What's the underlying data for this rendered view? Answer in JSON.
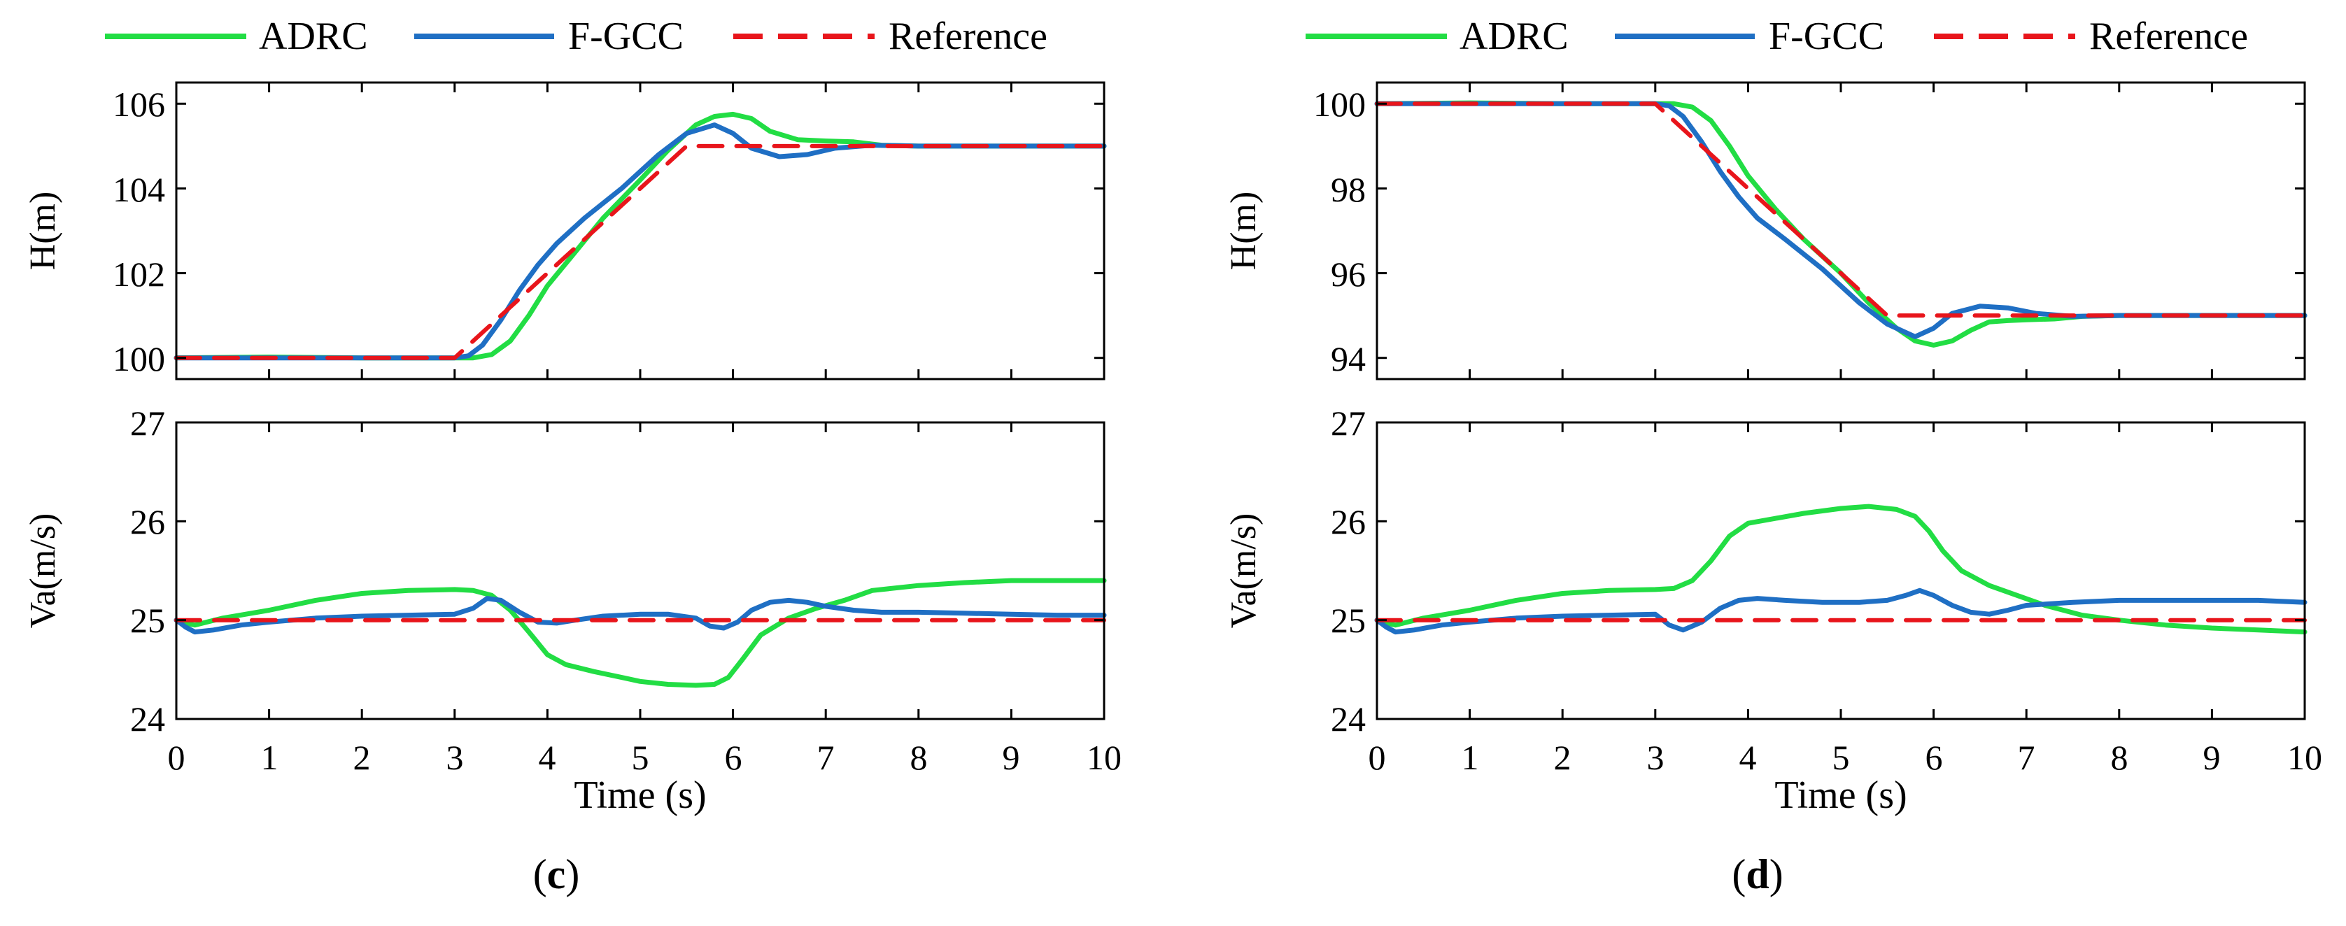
{
  "chart_data": [
    {
      "type": "line",
      "panel": "c",
      "caption": {
        "open": "(",
        "letter": "c",
        "close": ")"
      },
      "xlabel": "Time (s)",
      "xlim": [
        0,
        10
      ],
      "xticks": [
        0,
        1,
        2,
        3,
        4,
        5,
        6,
        7,
        8,
        9,
        10
      ],
      "legend": {
        "position": "top",
        "entries": [
          "ADRC",
          "F-GCC",
          "Reference"
        ]
      },
      "colors": {
        "ADRC": "#22dd44",
        "F-GCC": "#1f6fc4",
        "Reference": "#e8151b"
      },
      "subplots": [
        {
          "ylabel": "H(m)",
          "ylim": [
            99.5,
            106.5
          ],
          "yticks": [
            100,
            102,
            104,
            106
          ],
          "series": [
            {
              "name": "ADRC",
              "style": "solid",
              "x": [
                0,
                1,
                2,
                3,
                3.2,
                3.4,
                3.6,
                3.8,
                4,
                4.3,
                4.6,
                5,
                5.3,
                5.6,
                5.8,
                6,
                6.2,
                6.4,
                6.7,
                7,
                7.3,
                7.6,
                8,
                9,
                10
              ],
              "y": [
                100,
                100.02,
                100,
                100,
                100,
                100.08,
                100.4,
                101,
                101.7,
                102.5,
                103.3,
                104.2,
                104.9,
                105.5,
                105.7,
                105.75,
                105.65,
                105.35,
                105.15,
                105.12,
                105.1,
                105.02,
                105,
                105,
                105
              ]
            },
            {
              "name": "F-GCC",
              "style": "solid",
              "x": [
                0,
                1,
                2,
                3,
                3.15,
                3.3,
                3.5,
                3.7,
                3.9,
                4.1,
                4.4,
                4.8,
                5.2,
                5.5,
                5.8,
                6,
                6.2,
                6.5,
                6.8,
                7.1,
                7.5,
                8,
                9,
                10
              ],
              "y": [
                100,
                100,
                100,
                100,
                100.05,
                100.3,
                100.9,
                101.6,
                102.2,
                102.7,
                103.3,
                104,
                104.8,
                105.3,
                105.5,
                105.3,
                104.95,
                104.75,
                104.8,
                104.95,
                105.02,
                105,
                105,
                105
              ]
            },
            {
              "name": "Reference",
              "style": "dashed",
              "x": [
                0,
                3,
                5.5,
                10
              ],
              "y": [
                100,
                100,
                105,
                105
              ]
            }
          ]
        },
        {
          "ylabel": "Va(m/s)",
          "ylim": [
            24,
            27
          ],
          "yticks": [
            24,
            25,
            26,
            27
          ],
          "series": [
            {
              "name": "ADRC",
              "style": "solid",
              "x": [
                0,
                0.1,
                0.2,
                0.5,
                1,
                1.5,
                2,
                2.5,
                3,
                3.2,
                3.4,
                3.6,
                3.8,
                4,
                4.2,
                4.5,
                4.8,
                5,
                5.3,
                5.6,
                5.8,
                5.95,
                6.1,
                6.3,
                6.6,
                6.9,
                7.2,
                7.5,
                8,
                8.5,
                9,
                9.5,
                10
              ],
              "y": [
                25,
                24.97,
                24.95,
                25.02,
                25.1,
                25.2,
                25.27,
                25.3,
                25.31,
                25.3,
                25.25,
                25.1,
                24.88,
                24.65,
                24.55,
                24.48,
                24.42,
                24.38,
                24.35,
                24.34,
                24.35,
                24.42,
                24.6,
                24.85,
                25.02,
                25.12,
                25.2,
                25.3,
                25.35,
                25.38,
                25.4,
                25.4,
                25.4
              ]
            },
            {
              "name": "F-GCC",
              "style": "solid",
              "x": [
                0,
                0.1,
                0.2,
                0.4,
                0.7,
                1,
                1.5,
                2,
                2.5,
                3,
                3.2,
                3.35,
                3.5,
                3.7,
                3.9,
                4.1,
                4.3,
                4.6,
                5,
                5.3,
                5.6,
                5.75,
                5.9,
                6.05,
                6.2,
                6.4,
                6.6,
                6.8,
                7,
                7.3,
                7.6,
                8,
                8.5,
                9,
                9.5,
                10
              ],
              "y": [
                25,
                24.93,
                24.88,
                24.9,
                24.95,
                24.98,
                25.02,
                25.04,
                25.05,
                25.06,
                25.12,
                25.22,
                25.2,
                25.08,
                24.98,
                24.97,
                25,
                25.04,
                25.06,
                25.06,
                25.02,
                24.94,
                24.92,
                24.98,
                25.1,
                25.18,
                25.2,
                25.18,
                25.14,
                25.1,
                25.08,
                25.08,
                25.07,
                25.06,
                25.05,
                25.05
              ]
            },
            {
              "name": "Reference",
              "style": "dashed",
              "x": [
                0,
                10
              ],
              "y": [
                25,
                25
              ]
            }
          ]
        }
      ]
    },
    {
      "type": "line",
      "panel": "d",
      "caption": {
        "open": "(",
        "letter": "d",
        "close": ")"
      },
      "xlabel": "Time (s)",
      "xlim": [
        0,
        10
      ],
      "xticks": [
        0,
        1,
        2,
        3,
        4,
        5,
        6,
        7,
        8,
        9,
        10
      ],
      "legend": {
        "position": "top",
        "entries": [
          "ADRC",
          "F-GCC",
          "Reference"
        ]
      },
      "colors": {
        "ADRC": "#22dd44",
        "F-GCC": "#1f6fc4",
        "Reference": "#e8151b"
      },
      "subplots": [
        {
          "ylabel": "H(m)",
          "ylim": [
            93.5,
            100.5
          ],
          "yticks": [
            94,
            96,
            98,
            100
          ],
          "series": [
            {
              "name": "ADRC",
              "style": "solid",
              "x": [
                0,
                1,
                2,
                3,
                3.2,
                3.4,
                3.6,
                3.8,
                4,
                4.3,
                4.6,
                5,
                5.3,
                5.6,
                5.8,
                6,
                6.2,
                6.4,
                6.6,
                6.8,
                7,
                7.3,
                7.6,
                8,
                9,
                10
              ],
              "y": [
                100,
                100.02,
                100,
                100,
                100,
                99.92,
                99.6,
                99,
                98.3,
                97.5,
                96.8,
                96,
                95.3,
                94.7,
                94.4,
                94.3,
                94.4,
                94.65,
                94.85,
                94.88,
                94.9,
                94.92,
                94.98,
                95,
                95,
                95
              ]
            },
            {
              "name": "F-GCC",
              "style": "solid",
              "x": [
                0,
                1,
                2,
                3,
                3.15,
                3.3,
                3.5,
                3.7,
                3.9,
                4.1,
                4.4,
                4.8,
                5.2,
                5.5,
                5.8,
                6,
                6.2,
                6.5,
                6.8,
                7.1,
                7.5,
                8,
                9,
                10
              ],
              "y": [
                100,
                100,
                100,
                100,
                99.95,
                99.7,
                99.1,
                98.4,
                97.8,
                97.3,
                96.8,
                96.1,
                95.3,
                94.8,
                94.5,
                94.7,
                95.05,
                95.22,
                95.18,
                95.05,
                94.98,
                95,
                95,
                95
              ]
            },
            {
              "name": "Reference",
              "style": "dashed",
              "x": [
                0,
                3,
                5.5,
                10
              ],
              "y": [
                100,
                100,
                95,
                95
              ]
            }
          ]
        },
        {
          "ylabel": "Va(m/s)",
          "ylim": [
            24,
            27
          ],
          "yticks": [
            24,
            25,
            26,
            27
          ],
          "series": [
            {
              "name": "ADRC",
              "style": "solid",
              "x": [
                0,
                0.1,
                0.2,
                0.5,
                1,
                1.5,
                2,
                2.5,
                3,
                3.2,
                3.4,
                3.6,
                3.8,
                4,
                4.3,
                4.6,
                5,
                5.3,
                5.6,
                5.8,
                5.95,
                6.1,
                6.3,
                6.6,
                6.9,
                7.2,
                7.6,
                8,
                8.5,
                9,
                9.5,
                10
              ],
              "y": [
                25,
                24.97,
                24.95,
                25.02,
                25.1,
                25.2,
                25.27,
                25.3,
                25.31,
                25.32,
                25.4,
                25.6,
                25.85,
                25.98,
                26.03,
                26.08,
                26.13,
                26.15,
                26.12,
                26.05,
                25.9,
                25.7,
                25.5,
                25.35,
                25.25,
                25.15,
                25.05,
                25,
                24.95,
                24.92,
                24.9,
                24.88
              ]
            },
            {
              "name": "F-GCC",
              "style": "solid",
              "x": [
                0,
                0.1,
                0.2,
                0.4,
                0.7,
                1,
                1.5,
                2,
                2.5,
                3,
                3.15,
                3.3,
                3.5,
                3.7,
                3.9,
                4.1,
                4.4,
                4.8,
                5.2,
                5.5,
                5.7,
                5.85,
                6,
                6.2,
                6.4,
                6.6,
                6.8,
                7,
                7.5,
                8,
                8.5,
                9,
                9.5,
                10
              ],
              "y": [
                25,
                24.93,
                24.88,
                24.9,
                24.95,
                24.98,
                25.02,
                25.04,
                25.05,
                25.06,
                24.95,
                24.9,
                24.98,
                25.12,
                25.2,
                25.22,
                25.2,
                25.18,
                25.18,
                25.2,
                25.25,
                25.3,
                25.25,
                25.15,
                25.08,
                25.06,
                25.1,
                25.15,
                25.18,
                25.2,
                25.2,
                25.2,
                25.2,
                25.18
              ]
            },
            {
              "name": "Reference",
              "style": "dashed",
              "x": [
                0,
                10
              ],
              "y": [
                25,
                25
              ]
            }
          ]
        }
      ]
    }
  ]
}
